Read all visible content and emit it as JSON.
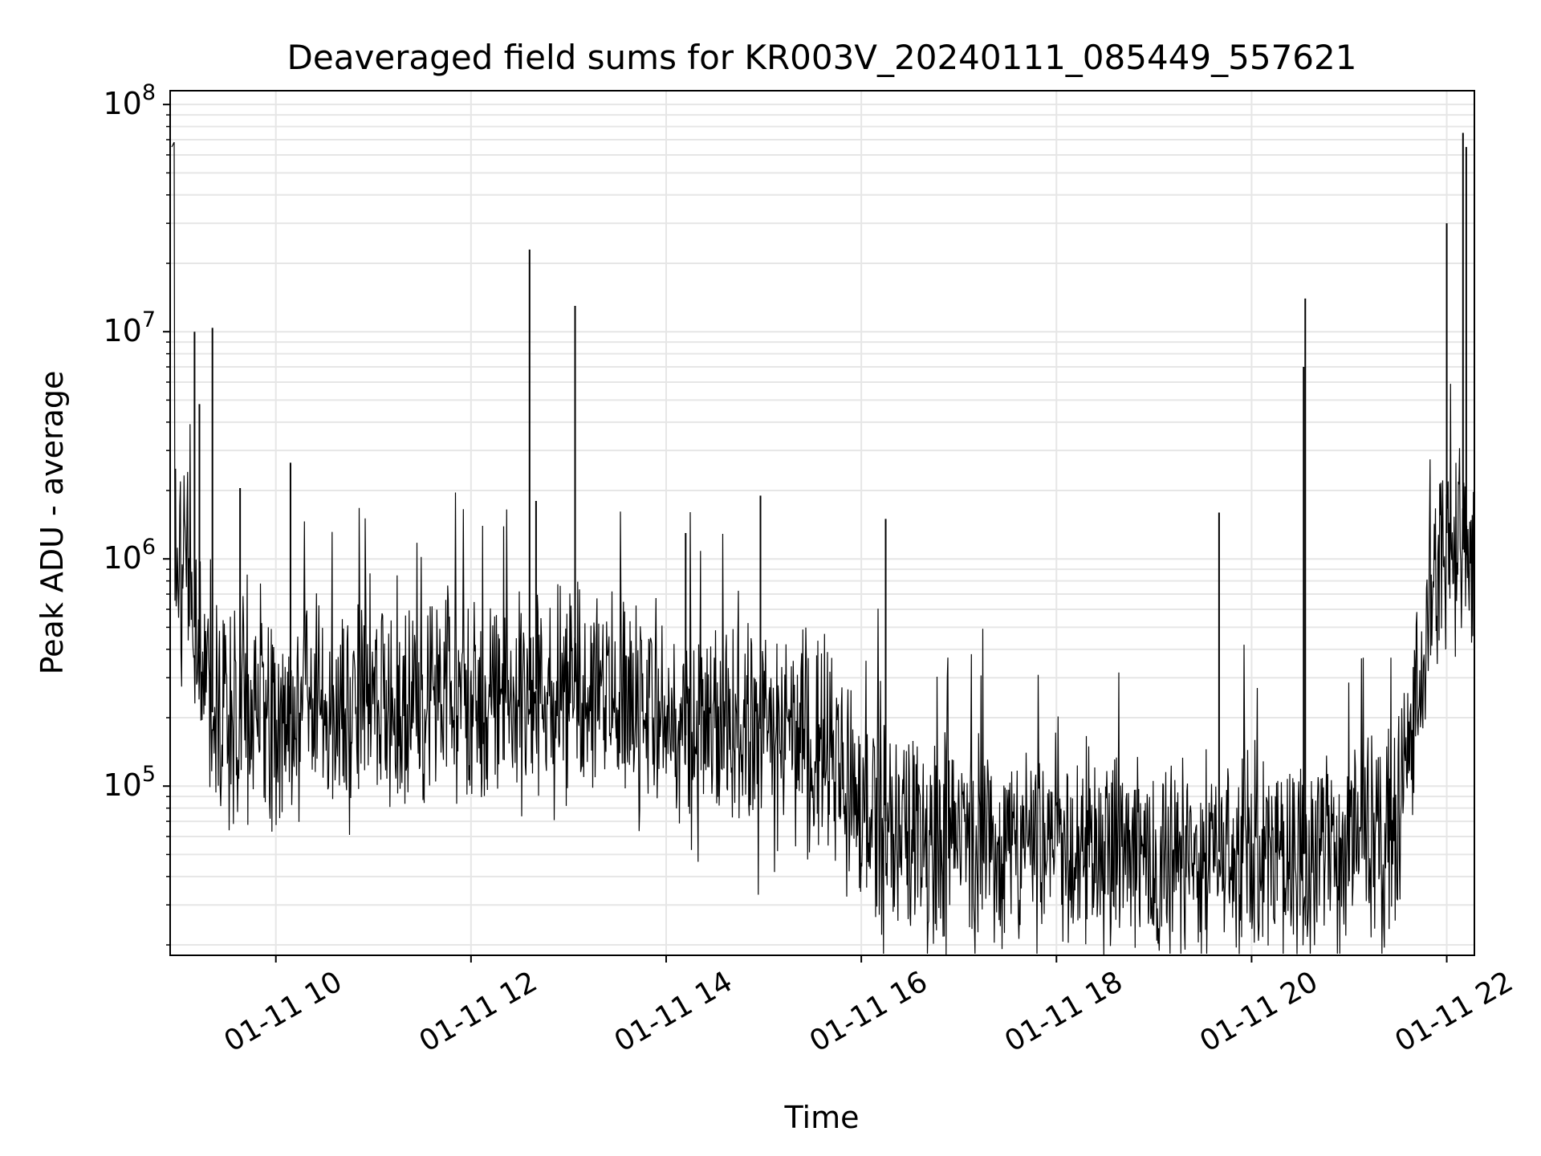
{
  "chart_data": {
    "type": "line",
    "title": "Deaveraged field sums for KR003V_20240111_085449_557621",
    "xlabel": "Time",
    "ylabel": "Peak ADU - average",
    "y_scale": "log",
    "ylim": [
      18000,
      115000000
    ],
    "xlim": [
      "01-11 08:55",
      "01-11 22:17"
    ],
    "grid": true,
    "line_color": "#000000",
    "grid_color": "#e6e6e6",
    "x_ticks": [
      {
        "value": "01-11 10:00",
        "label": "01-11 10"
      },
      {
        "value": "01-11 12:00",
        "label": "01-11 12"
      },
      {
        "value": "01-11 14:00",
        "label": "01-11 14"
      },
      {
        "value": "01-11 16:00",
        "label": "01-11 16"
      },
      {
        "value": "01-11 18:00",
        "label": "01-11 18"
      },
      {
        "value": "01-11 20:00",
        "label": "01-11 20"
      },
      {
        "value": "01-11 22:00",
        "label": "01-11 22"
      }
    ],
    "y_ticks": [
      {
        "value": 100000,
        "base": "10",
        "exp": "5"
      },
      {
        "value": 1000000,
        "base": "10",
        "exp": "6"
      },
      {
        "value": 10000000,
        "base": "10",
        "exp": "7"
      },
      {
        "value": 100000000,
        "base": "10",
        "exp": "8"
      }
    ],
    "series": [
      {
        "x": [
          "01-11 08:55",
          "01-11 08:56",
          "01-11 08:58",
          "01-11 09:00",
          "01-11 09:05",
          "01-11 09:10",
          "01-11 09:15",
          "01-11 09:20",
          "01-11 09:25",
          "01-11 09:30",
          "01-11 09:35",
          "01-11 09:40",
          "01-11 09:45",
          "01-11 10:00",
          "01-11 10:15",
          "01-11 10:30",
          "01-11 10:45",
          "01-11 11:00",
          "01-11 11:15",
          "01-11 11:30",
          "01-11 11:45",
          "01-11 12:00",
          "01-11 12:15",
          "01-11 12:30",
          "01-11 12:45",
          "01-11 13:00",
          "01-11 13:15",
          "01-11 13:30",
          "01-11 13:45",
          "01-11 14:00",
          "01-11 14:15",
          "01-11 14:30",
          "01-11 14:45",
          "01-11 15:00",
          "01-11 15:15",
          "01-11 15:30",
          "01-11 15:40",
          "01-11 15:50",
          "01-11 16:00",
          "01-11 16:15",
          "01-11 16:30",
          "01-11 16:45",
          "01-11 17:00",
          "01-11 17:15",
          "01-11 17:30",
          "01-11 17:45",
          "01-11 18:00",
          "01-11 18:15",
          "01-11 18:30",
          "01-11 18:45",
          "01-11 19:00",
          "01-11 19:15",
          "01-11 19:30",
          "01-11 19:45",
          "01-11 20:00",
          "01-11 20:15",
          "01-11 20:30",
          "01-11 20:45",
          "01-11 21:00",
          "01-11 21:15",
          "01-11 21:30",
          "01-11 21:40",
          "01-11 21:50",
          "01-11 22:00",
          "01-11 22:05",
          "01-11 22:10",
          "01-11 22:17"
        ],
        "y": [
          65000000,
          1500000,
          900000,
          1200000,
          1100000,
          500000,
          350000,
          220000,
          180000,
          200000,
          210000,
          190000,
          200000,
          190000,
          220000,
          200000,
          240000,
          230000,
          220000,
          210000,
          240000,
          250000,
          240000,
          260000,
          270000,
          290000,
          280000,
          260000,
          250000,
          200000,
          160000,
          170000,
          170000,
          180000,
          170000,
          160000,
          150000,
          110000,
          80000,
          70000,
          65000,
          60000,
          58000,
          56000,
          55000,
          58000,
          60000,
          57000,
          55000,
          52000,
          48000,
          46000,
          50000,
          52000,
          55000,
          52000,
          50000,
          52000,
          48000,
          47000,
          70000,
          250000,
          500000,
          1300000,
          1000000,
          1100000,
          900000
        ]
      }
    ],
    "spikes": [
      {
        "x": "01-11 09:10",
        "y": 10000000
      },
      {
        "x": "01-11 09:13",
        "y": 4800000
      },
      {
        "x": "01-11 09:21",
        "y": 10400000
      },
      {
        "x": "01-11 09:38",
        "y": 2050000
      },
      {
        "x": "01-11 10:09",
        "y": 2650000
      },
      {
        "x": "01-11 12:36",
        "y": 23000000
      },
      {
        "x": "01-11 12:40",
        "y": 1800000
      },
      {
        "x": "01-11 13:04",
        "y": 13000000
      },
      {
        "x": "01-11 14:12",
        "y": 1300000
      },
      {
        "x": "01-11 14:58",
        "y": 1900000
      },
      {
        "x": "01-11 16:15",
        "y": 1500000
      },
      {
        "x": "01-11 19:40",
        "y": 1600000
      },
      {
        "x": "01-11 20:32",
        "y": 7000000
      },
      {
        "x": "01-11 20:33",
        "y": 14000000
      },
      {
        "x": "01-11 22:00",
        "y": 30000000
      },
      {
        "x": "01-11 22:10",
        "y": 75000000
      },
      {
        "x": "01-11 22:12",
        "y": 65000000
      }
    ]
  }
}
